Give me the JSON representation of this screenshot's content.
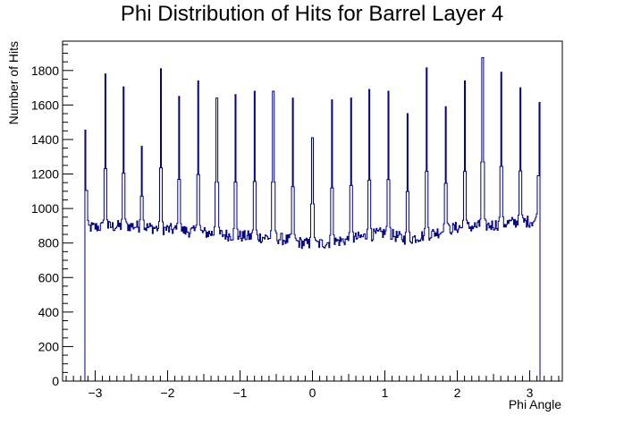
{
  "chart_data": {
    "type": "histogram",
    "title": "Phi Distribution of Hits for Barrel Layer 4",
    "xlabel": "Phi Angle",
    "ylabel": "Number of Hits",
    "xlim": [
      -3.45,
      3.45
    ],
    "ylim": [
      0,
      1970
    ],
    "x_ticks": [
      -3,
      -2,
      -1,
      0,
      1,
      2,
      3
    ],
    "y_ticks": [
      0,
      200,
      400,
      600,
      800,
      1000,
      1200,
      1400,
      1600,
      1800
    ],
    "binning": {
      "nbins": 500,
      "x_min": -3.1416,
      "x_max": 3.1416
    },
    "baseline": {
      "x": [
        -3.14,
        -2.5,
        -2.0,
        -1.5,
        -1.0,
        -0.5,
        0.0,
        0.5,
        1.0,
        1.3,
        1.6,
        2.0,
        2.4,
        2.8,
        3.14
      ],
      "y": [
        890,
        900,
        880,
        860,
        840,
        830,
        790,
        820,
        860,
        820,
        850,
        890,
        900,
        920,
        930
      ]
    },
    "peaks": [
      {
        "x": -3.13,
        "height": 1455
      },
      {
        "x": -2.86,
        "height": 1780
      },
      {
        "x": -2.61,
        "height": 1705
      },
      {
        "x": -2.36,
        "height": 1360
      },
      {
        "x": -2.09,
        "height": 1810
      },
      {
        "x": -1.84,
        "height": 1650
      },
      {
        "x": -1.58,
        "height": 1740
      },
      {
        "x": -1.32,
        "height": 1640
      },
      {
        "x": -1.06,
        "height": 1660
      },
      {
        "x": -0.8,
        "height": 1680
      },
      {
        "x": -0.54,
        "height": 1680
      },
      {
        "x": -0.27,
        "height": 1640
      },
      {
        "x": 0.0,
        "height": 1410
      },
      {
        "x": 0.27,
        "height": 1630
      },
      {
        "x": 0.53,
        "height": 1640
      },
      {
        "x": 0.79,
        "height": 1690
      },
      {
        "x": 1.05,
        "height": 1680
      },
      {
        "x": 1.31,
        "height": 1550
      },
      {
        "x": 1.58,
        "height": 1815
      },
      {
        "x": 1.84,
        "height": 1590
      },
      {
        "x": 2.1,
        "height": 1740
      },
      {
        "x": 2.35,
        "height": 1875
      },
      {
        "x": 2.61,
        "height": 1790
      },
      {
        "x": 2.87,
        "height": 1700
      },
      {
        "x": 3.13,
        "height": 1615
      }
    ],
    "colors": {
      "line": "#000080",
      "frame": "#000000",
      "background": "#ffffff"
    }
  }
}
